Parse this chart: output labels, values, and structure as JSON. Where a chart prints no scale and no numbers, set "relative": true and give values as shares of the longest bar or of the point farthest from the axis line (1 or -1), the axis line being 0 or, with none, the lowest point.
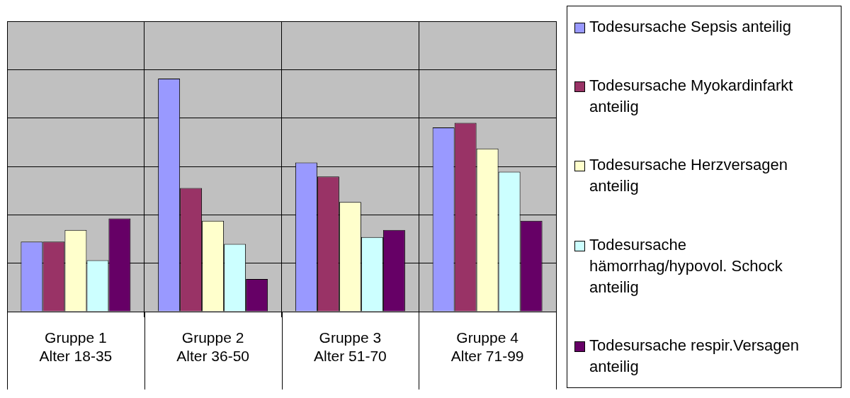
{
  "chart_data": {
    "type": "bar",
    "relative": true,
    "grid": "y",
    "legend": "right",
    "categories": [
      "Gruppe 1\nAlter 18-35",
      "Gruppe 2\nAlter 36-50",
      "Gruppe 3\nAlter 51-70",
      "Gruppe 4\nAlter 71-99"
    ],
    "series": [
      {
        "name": "Todesursache Sepsis anteilig",
        "color": "#9999ff",
        "values": [
          0.3,
          1,
          0.64,
          0.79
        ]
      },
      {
        "name": "Todesursache Myokardinfarkt anteilig",
        "color": "#993366",
        "values": [
          0.3,
          0.53,
          0.58,
          0.81
        ]
      },
      {
        "name": "Todesursache Herzversagen anteilig",
        "color": "#ffffcc",
        "values": [
          0.35,
          0.39,
          0.47,
          0.7
        ]
      },
      {
        "name": "Todesursache hämorrhag/hypovol. Schock anteilig",
        "color": "#ccffff",
        "values": [
          0.22,
          0.29,
          0.32,
          0.6
        ]
      },
      {
        "name": "Todesursache respir.Versagen anteilig",
        "color": "#660066",
        "values": [
          0.4,
          0.14,
          0.35,
          0.39
        ]
      }
    ]
  }
}
